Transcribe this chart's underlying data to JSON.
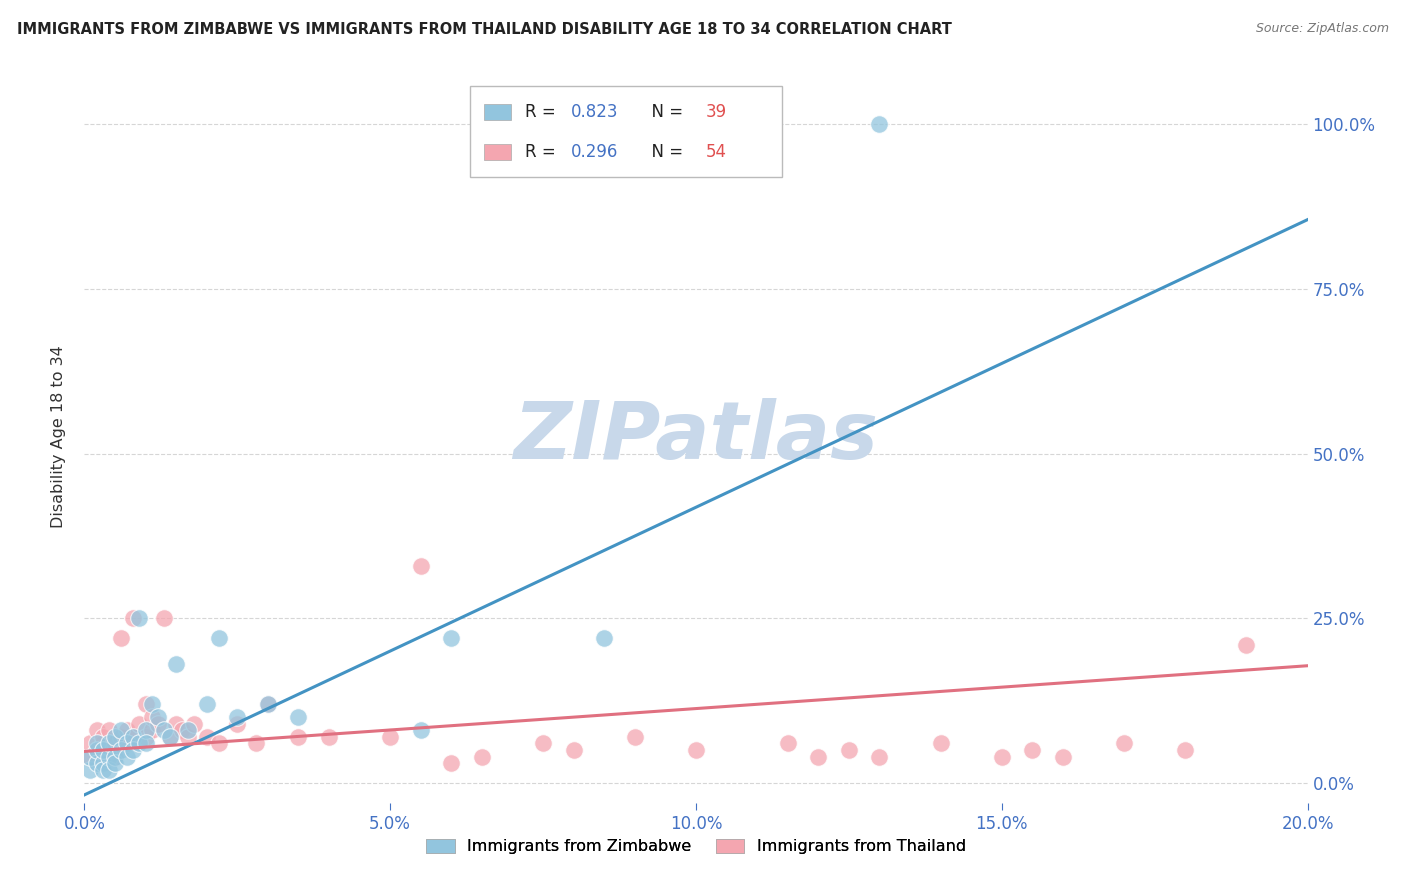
{
  "title": "IMMIGRANTS FROM ZIMBABWE VS IMMIGRANTS FROM THAILAND DISABILITY AGE 18 TO 34 CORRELATION CHART",
  "source": "Source: ZipAtlas.com",
  "ylabel": "Disability Age 18 to 34",
  "xlim": [
    0.0,
    0.2
  ],
  "ylim": [
    -0.03,
    1.08
  ],
  "xticks": [
    0.0,
    0.05,
    0.1,
    0.15,
    0.2
  ],
  "yticks_right": [
    0.0,
    0.25,
    0.5,
    0.75,
    1.0
  ],
  "grid_color": "#cccccc",
  "background_color": "#ffffff",
  "zimbabwe_color": "#92c5de",
  "thailand_color": "#f4a6b0",
  "zimbabwe_line_color": "#4393c3",
  "thailand_line_color": "#e07080",
  "legend_color": "#4472c4",
  "legend_n_color": "#e05555",
  "legend_zimbabwe_label": "Immigrants from Zimbabwe",
  "legend_thailand_label": "Immigrants from Thailand",
  "R_zimbabwe": 0.823,
  "N_zimbabwe": 39,
  "R_thailand": 0.296,
  "N_thailand": 54,
  "zim_line_x0": 0.0,
  "zim_line_y0": -0.018,
  "zim_line_x1": 0.2,
  "zim_line_y1": 0.855,
  "thai_line_x0": 0.0,
  "thai_line_y0": 0.048,
  "thai_line_x1": 0.2,
  "thai_line_y1": 0.178,
  "zimbabwe_scatter_x": [
    0.001,
    0.001,
    0.002,
    0.002,
    0.002,
    0.003,
    0.003,
    0.003,
    0.004,
    0.004,
    0.004,
    0.005,
    0.005,
    0.005,
    0.006,
    0.006,
    0.007,
    0.007,
    0.008,
    0.008,
    0.009,
    0.009,
    0.01,
    0.01,
    0.011,
    0.012,
    0.013,
    0.014,
    0.015,
    0.017,
    0.02,
    0.022,
    0.025,
    0.03,
    0.035,
    0.055,
    0.06,
    0.085,
    0.13
  ],
  "zimbabwe_scatter_y": [
    0.02,
    0.04,
    0.03,
    0.05,
    0.06,
    0.03,
    0.05,
    0.02,
    0.04,
    0.06,
    0.02,
    0.04,
    0.07,
    0.03,
    0.05,
    0.08,
    0.06,
    0.04,
    0.07,
    0.05,
    0.06,
    0.25,
    0.08,
    0.06,
    0.12,
    0.1,
    0.08,
    0.07,
    0.18,
    0.08,
    0.12,
    0.22,
    0.1,
    0.12,
    0.1,
    0.08,
    0.22,
    0.22,
    1.0
  ],
  "thailand_scatter_x": [
    0.001,
    0.001,
    0.002,
    0.002,
    0.003,
    0.003,
    0.003,
    0.004,
    0.004,
    0.005,
    0.005,
    0.006,
    0.006,
    0.007,
    0.008,
    0.008,
    0.009,
    0.01,
    0.01,
    0.011,
    0.011,
    0.012,
    0.013,
    0.014,
    0.015,
    0.016,
    0.017,
    0.018,
    0.02,
    0.022,
    0.025,
    0.028,
    0.03,
    0.035,
    0.04,
    0.05,
    0.055,
    0.06,
    0.065,
    0.075,
    0.08,
    0.09,
    0.1,
    0.115,
    0.12,
    0.125,
    0.13,
    0.14,
    0.15,
    0.155,
    0.16,
    0.17,
    0.18,
    0.19
  ],
  "thailand_scatter_y": [
    0.04,
    0.06,
    0.05,
    0.08,
    0.06,
    0.04,
    0.07,
    0.05,
    0.08,
    0.06,
    0.04,
    0.07,
    0.22,
    0.08,
    0.25,
    0.07,
    0.09,
    0.07,
    0.12,
    0.08,
    0.1,
    0.09,
    0.25,
    0.07,
    0.09,
    0.08,
    0.07,
    0.09,
    0.07,
    0.06,
    0.09,
    0.06,
    0.12,
    0.07,
    0.07,
    0.07,
    0.33,
    0.03,
    0.04,
    0.06,
    0.05,
    0.07,
    0.05,
    0.06,
    0.04,
    0.05,
    0.04,
    0.06,
    0.04,
    0.05,
    0.04,
    0.06,
    0.05,
    0.21
  ],
  "watermark_text": "ZIPatlas",
  "watermark_color": "#c8d8ea"
}
